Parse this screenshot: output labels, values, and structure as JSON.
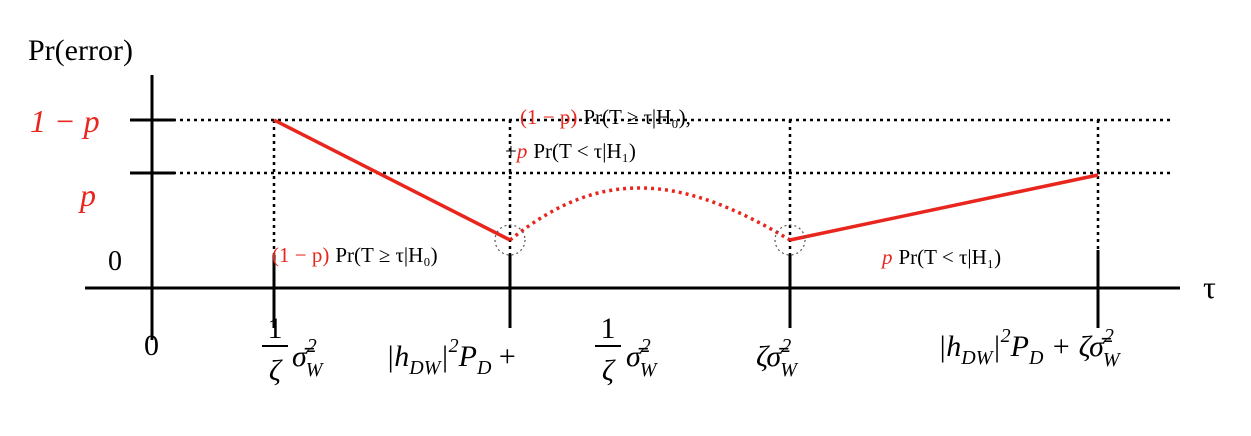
{
  "y_axis": {
    "title": "Pr(error)",
    "labels": [
      "1 − p",
      "p",
      "0"
    ]
  },
  "x_axis": {
    "symbol": "τ",
    "origin": "0",
    "labels": [
      [
        "1",
        "ζ",
        "σ̄",
        "2",
        "W"
      ],
      [
        "|h",
        "DW",
        "|",
        "2",
        "P",
        "D",
        " + ",
        "1",
        "ζ",
        "σ̄",
        "2",
        "W"
      ],
      [
        "ζσ̄",
        "2",
        "W"
      ],
      [
        "|h",
        "DW",
        "|",
        "2",
        "P",
        "D",
        " + ζσ̄",
        "2",
        "W"
      ]
    ]
  },
  "annotations": [
    {
      "weight": "(1 − p)",
      "term": "Pr(T ≥ τ|H₀)"
    },
    {
      "weight": "(1 − p)",
      "term": "Pr(T ≥ τ|H₀),",
      "plus": "+",
      "weight2": "p",
      "term2": "Pr(T < τ|H₁)"
    },
    {
      "weight": "p",
      "term": "Pr(T < τ|H₁)"
    }
  ]
}
